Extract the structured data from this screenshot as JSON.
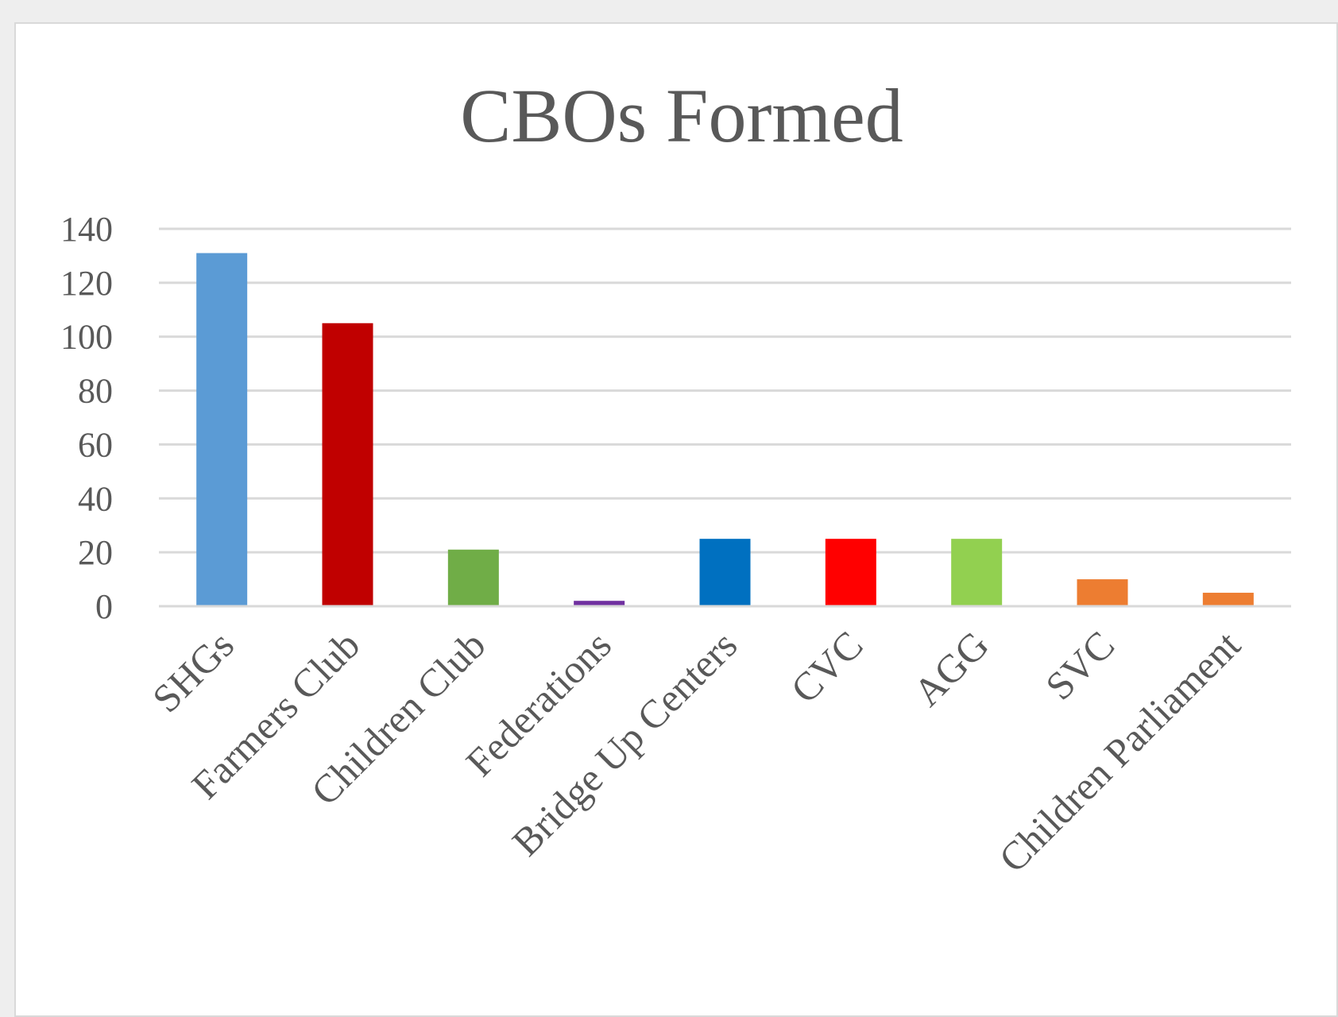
{
  "chart_data": {
    "type": "bar",
    "title": "CBOs Formed",
    "xlabel": "",
    "ylabel": "",
    "categories": [
      "SHGs",
      "Farmers Club",
      "Children Club",
      "Federations",
      "Bridge Up Centers",
      "CVC",
      "AGG",
      "SVC",
      "Children Parliament"
    ],
    "values": [
      131,
      105,
      21,
      2,
      25,
      25,
      25,
      10,
      5
    ],
    "colors": [
      "#5b9bd5",
      "#c00000",
      "#70ad47",
      "#7030a0",
      "#0070c0",
      "#ff0000",
      "#92d050",
      "#ed7d31",
      "#ed7d31"
    ],
    "ylim": [
      0,
      140
    ],
    "yticks": [
      0,
      20,
      40,
      60,
      80,
      100,
      120,
      140
    ],
    "grid": true,
    "legend": "none"
  }
}
